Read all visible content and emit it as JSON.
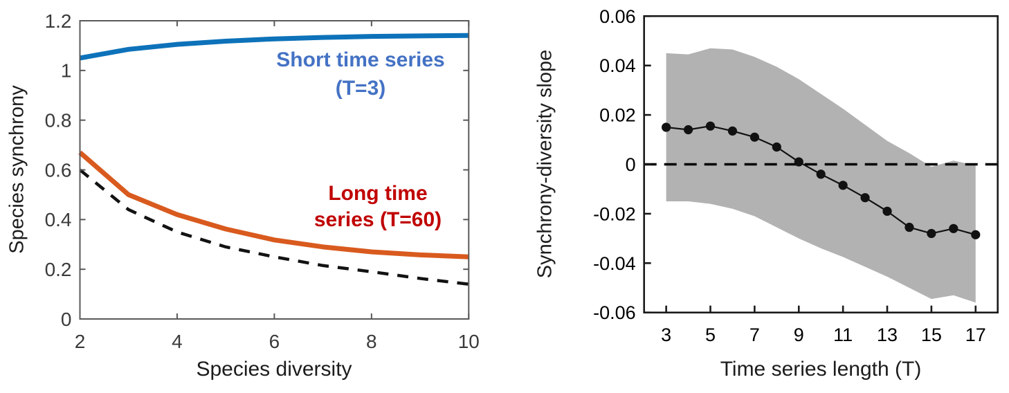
{
  "page": {
    "background": "#ffffff"
  },
  "chart_data": [
    {
      "id": "synchrony-vs-diversity",
      "type": "line",
      "title": "",
      "xlabel": "Species diversity",
      "ylabel": "Species synchrony",
      "xlim": [
        2,
        10
      ],
      "ylim": [
        0,
        1.2
      ],
      "grid": false,
      "legend_position": "none",
      "xtick_values": [
        2,
        4,
        6,
        8,
        10
      ],
      "xtick_labels": [
        "2",
        "4",
        "6",
        "8",
        "10"
      ],
      "ytick_values": [
        0,
        0.2,
        0.4,
        0.6,
        0.8,
        1,
        1.2
      ],
      "ytick_labels": [
        "0",
        "0.2",
        "0.4",
        "0.6",
        "0.8",
        "1",
        "1.2"
      ],
      "x": [
        2,
        3,
        4,
        5,
        6,
        7,
        8,
        9,
        10
      ],
      "series": [
        {
          "name": "Short time series (T=3)",
          "style": "solid",
          "color": "#0d72b9",
          "width": 7,
          "values": [
            1.05,
            1.085,
            1.105,
            1.118,
            1.127,
            1.133,
            1.137,
            1.139,
            1.141
          ]
        },
        {
          "name": "Long time series (T=60)",
          "style": "solid",
          "color": "#d95a1e",
          "width": 7,
          "values": [
            0.67,
            0.5,
            0.42,
            0.362,
            0.318,
            0.29,
            0.27,
            0.258,
            0.25
          ]
        },
        {
          "name": "dashed reference curve",
          "style": "dashed",
          "color": "#121212",
          "width": 4.5,
          "values": [
            0.6,
            0.44,
            0.35,
            0.29,
            0.25,
            0.215,
            0.19,
            0.163,
            0.14
          ]
        }
      ],
      "annotations": [
        {
          "lines": [
            "Short time series",
            "(T=3)"
          ],
          "color": "#4472c4"
        },
        {
          "lines": [
            "Long time",
            "series (T=60)"
          ],
          "color": "#c00000"
        }
      ]
    },
    {
      "id": "slope-vs-timeseries-length",
      "type": "line",
      "title": "",
      "xlabel": "Time series length (T)",
      "ylabel": "Synchrony-diversity slope",
      "xlim": [
        2,
        18
      ],
      "ylim": [
        -0.06,
        0.06
      ],
      "grid": false,
      "legend_position": "none",
      "xtick_values": [
        3,
        5,
        7,
        9,
        11,
        13,
        15,
        17
      ],
      "xtick_labels": [
        "3",
        "5",
        "7",
        "9",
        "11",
        "13",
        "15",
        "17"
      ],
      "ytick_values": [
        -0.06,
        -0.04,
        -0.02,
        0,
        0.02,
        0.04,
        0.06
      ],
      "ytick_labels": [
        "-0.06",
        "-0.04",
        "-0.02",
        "0",
        "0.02",
        "0.04",
        "0.06"
      ],
      "x": [
        3,
        4,
        5,
        6,
        7,
        8,
        9,
        10,
        11,
        12,
        13,
        14,
        15,
        16,
        17
      ],
      "series": [
        {
          "name": "mean synchrony-diversity slope",
          "style": "solid-markers",
          "color": "#111111",
          "width": 2.2,
          "marker_radius": 6.6,
          "values": [
            0.015,
            0.014,
            0.0155,
            0.0135,
            0.011,
            0.007,
            0.001,
            -0.004,
            -0.0085,
            -0.0135,
            -0.019,
            -0.0255,
            -0.028,
            -0.026,
            -0.0285
          ]
        }
      ],
      "band": {
        "name": "confidence band",
        "color": "#b2b2b2",
        "upper": [
          0.045,
          0.0445,
          0.047,
          0.0465,
          0.0435,
          0.0395,
          0.0345,
          0.0285,
          0.0225,
          0.016,
          0.0095,
          0.0045,
          -0.001,
          0.0015,
          -0.0005
        ],
        "lower": [
          -0.015,
          -0.015,
          -0.016,
          -0.018,
          -0.021,
          -0.0255,
          -0.03,
          -0.034,
          -0.0375,
          -0.0415,
          -0.0455,
          -0.05,
          -0.0545,
          -0.053,
          -0.056
        ]
      },
      "reference_line": {
        "y": 0,
        "style": "dashed",
        "color": "#000000",
        "width": 3.6
      }
    }
  ]
}
